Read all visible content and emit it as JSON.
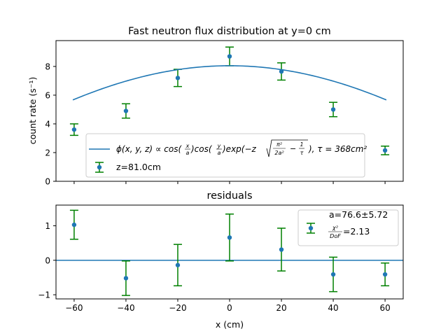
{
  "colors": {
    "fit_line": "#1f77b4",
    "points": "#1f77b4",
    "errorbars": "#008000",
    "axes": "#000000",
    "background": "#ffffff"
  },
  "chart_data": [
    {
      "type": "scatter",
      "panel": "top",
      "title": "Fast neutron flux distribution at y=0 cm",
      "xlabel": "",
      "ylabel": "count rate (s⁻¹)",
      "xlim": [
        -67,
        67
      ],
      "ylim": [
        0,
        9.8
      ],
      "x_ticks": [
        -60,
        -40,
        -20,
        0,
        20,
        40,
        60
      ],
      "x_tick_labels_visible": false,
      "y_ticks": [
        0,
        2,
        4,
        6,
        8
      ],
      "y_tick_labels": [
        "0",
        "2",
        "4",
        "6",
        "8"
      ],
      "grid": false,
      "legend_position": "lower center",
      "series": [
        {
          "name": "z=81.0cm",
          "kind": "errorbar",
          "x": [
            -60,
            -40,
            -20,
            0,
            20,
            40,
            60
          ],
          "y": [
            3.6,
            4.9,
            7.2,
            8.7,
            7.65,
            5.0,
            2.15
          ],
          "yerr": [
            0.4,
            0.5,
            0.6,
            0.65,
            0.6,
            0.5,
            0.3
          ]
        },
        {
          "kind": "line",
          "legend_parts": {
            "prefix": "ϕ(x, y, z) ∝ cos(",
            "frac1_num": "x",
            "frac1_den": "a",
            "mid1": ")cos(",
            "frac2_num": "y",
            "frac2_den": "a",
            "mid2": ")exp(−z",
            "sqrt_a_num": "π²",
            "sqrt_a_den": "2a²",
            "sqrt_minus": "−",
            "sqrt_b_num": "1",
            "sqrt_b_den": "τ",
            "suffix": "), τ = 368cm²"
          },
          "model": {
            "amplitude": 8.05,
            "a": 76.6,
            "x_range": [
              -60.5,
              60.5
            ]
          }
        }
      ]
    },
    {
      "type": "scatter",
      "panel": "bottom",
      "title": "residuals",
      "xlabel": "x (cm)",
      "ylabel": "",
      "xlim": [
        -67,
        67
      ],
      "ylim": [
        -1.12,
        1.6
      ],
      "x_ticks": [
        -60,
        -40,
        -20,
        0,
        20,
        40,
        60
      ],
      "x_tick_labels": [
        "−60",
        "−40",
        "−20",
        "0",
        "20",
        "40",
        "60"
      ],
      "y_ticks": [
        -1,
        0,
        1
      ],
      "y_tick_labels": [
        "−1",
        "0",
        "1"
      ],
      "grid": false,
      "legend_position": "upper right",
      "hline": 0,
      "legend_text": {
        "line1": "a=76.6±5.72",
        "chi_num": "χ²",
        "chi_den": "DoF",
        "chi_value": "=2.13"
      },
      "series": [
        {
          "kind": "errorbar",
          "x": [
            -60,
            -40,
            -20,
            0,
            20,
            40,
            60
          ],
          "y": [
            1.03,
            -0.52,
            -0.14,
            0.66,
            0.31,
            -0.41,
            -0.41
          ],
          "yerr": [
            0.42,
            0.5,
            0.6,
            0.68,
            0.62,
            0.5,
            0.33
          ]
        }
      ]
    }
  ]
}
